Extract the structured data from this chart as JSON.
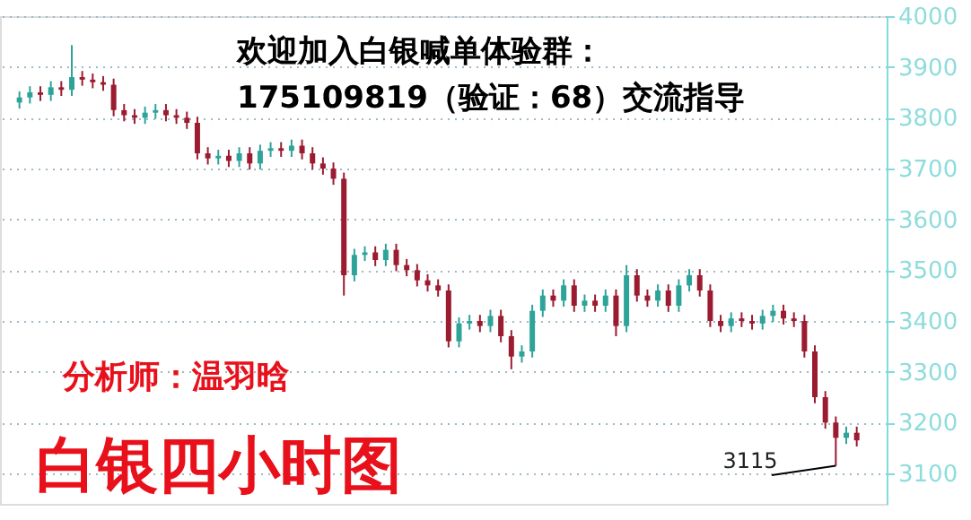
{
  "chart_data": {
    "type": "candlestick",
    "title": "白银四小时图",
    "categories": [
      null,
      null,
      null,
      null,
      null,
      null,
      null,
      null,
      null,
      null,
      null,
      null,
      null,
      null,
      null,
      null,
      null,
      null,
      null,
      null,
      null,
      null,
      null,
      null,
      null,
      null,
      null,
      null,
      null,
      null,
      null,
      null,
      null,
      null,
      null,
      null,
      null,
      null,
      null,
      null,
      null,
      null,
      null,
      null,
      null,
      null,
      null,
      null,
      null,
      null,
      null,
      null,
      null,
      null,
      null,
      null,
      null,
      null,
      null,
      null,
      null,
      null,
      null,
      null,
      null,
      null,
      null,
      null,
      null,
      null,
      null,
      null,
      null,
      null,
      null,
      null,
      null,
      null,
      null,
      null,
      null
    ],
    "ohlc": [
      [
        3830,
        3852,
        3818,
        3840
      ],
      [
        3840,
        3862,
        3828,
        3850
      ],
      [
        3850,
        3862,
        3833,
        3845
      ],
      [
        3845,
        3872,
        3833,
        3860
      ],
      [
        3860,
        3872,
        3843,
        3855
      ],
      [
        3855,
        3943,
        3843,
        3880
      ],
      [
        3880,
        3892,
        3863,
        3875
      ],
      [
        3875,
        3887,
        3858,
        3870
      ],
      [
        3870,
        3882,
        3853,
        3865
      ],
      [
        3865,
        3877,
        3803,
        3815
      ],
      [
        3815,
        3827,
        3793,
        3805
      ],
      [
        3805,
        3817,
        3788,
        3800
      ],
      [
        3800,
        3822,
        3788,
        3810
      ],
      [
        3810,
        3827,
        3798,
        3815
      ],
      [
        3815,
        3827,
        3793,
        3805
      ],
      [
        3805,
        3817,
        3788,
        3800
      ],
      [
        3800,
        3812,
        3778,
        3790
      ],
      [
        3790,
        3802,
        3718,
        3730
      ],
      [
        3730,
        3742,
        3708,
        3720
      ],
      [
        3720,
        3737,
        3708,
        3725
      ],
      [
        3725,
        3737,
        3703,
        3715
      ],
      [
        3715,
        3742,
        3703,
        3730
      ],
      [
        3730,
        3742,
        3698,
        3710
      ],
      [
        3710,
        3747,
        3698,
        3735
      ],
      [
        3735,
        3752,
        3723,
        3740
      ],
      [
        3740,
        3752,
        3723,
        3735
      ],
      [
        3735,
        3757,
        3723,
        3745
      ],
      [
        3745,
        3757,
        3718,
        3730
      ],
      [
        3730,
        3742,
        3698,
        3710
      ],
      [
        3710,
        3722,
        3688,
        3700
      ],
      [
        3700,
        3712,
        3668,
        3680
      ],
      [
        3680,
        3692,
        3450,
        3490
      ],
      [
        3490,
        3542,
        3478,
        3530
      ],
      [
        3530,
        3547,
        3518,
        3535
      ],
      [
        3535,
        3547,
        3508,
        3520
      ],
      [
        3520,
        3552,
        3508,
        3540
      ],
      [
        3540,
        3552,
        3498,
        3510
      ],
      [
        3510,
        3522,
        3488,
        3500
      ],
      [
        3500,
        3512,
        3468,
        3480
      ],
      [
        3480,
        3492,
        3458,
        3470
      ],
      [
        3470,
        3482,
        3448,
        3460
      ],
      [
        3460,
        3472,
        3348,
        3360
      ],
      [
        3360,
        3407,
        3348,
        3395
      ],
      [
        3395,
        3412,
        3383,
        3400
      ],
      [
        3400,
        3412,
        3378,
        3390
      ],
      [
        3390,
        3422,
        3378,
        3410
      ],
      [
        3410,
        3422,
        3358,
        3370
      ],
      [
        3370,
        3382,
        3305,
        3330
      ],
      [
        3330,
        3352,
        3318,
        3340
      ],
      [
        3340,
        3432,
        3328,
        3420
      ],
      [
        3420,
        3462,
        3408,
        3450
      ],
      [
        3450,
        3462,
        3428,
        3440
      ],
      [
        3440,
        3482,
        3428,
        3470
      ],
      [
        3470,
        3482,
        3418,
        3430
      ],
      [
        3430,
        3452,
        3418,
        3440
      ],
      [
        3440,
        3452,
        3418,
        3430
      ],
      [
        3430,
        3462,
        3418,
        3450
      ],
      [
        3450,
        3462,
        3370,
        3390
      ],
      [
        3390,
        3510,
        3378,
        3490
      ],
      [
        3490,
        3502,
        3438,
        3450
      ],
      [
        3450,
        3462,
        3428,
        3440
      ],
      [
        3440,
        3472,
        3428,
        3460
      ],
      [
        3460,
        3472,
        3418,
        3430
      ],
      [
        3430,
        3482,
        3418,
        3470
      ],
      [
        3470,
        3502,
        3458,
        3490
      ],
      [
        3490,
        3502,
        3448,
        3460
      ],
      [
        3460,
        3472,
        3388,
        3400
      ],
      [
        3400,
        3412,
        3378,
        3390
      ],
      [
        3390,
        3417,
        3378,
        3405
      ],
      [
        3405,
        3417,
        3388,
        3400
      ],
      [
        3400,
        3412,
        3383,
        3395
      ],
      [
        3395,
        3422,
        3383,
        3410
      ],
      [
        3410,
        3432,
        3398,
        3420
      ],
      [
        3420,
        3432,
        3393,
        3405
      ],
      [
        3405,
        3417,
        3388,
        3400
      ],
      [
        3400,
        3412,
        3328,
        3340
      ],
      [
        3340,
        3352,
        3238,
        3250
      ],
      [
        3250,
        3262,
        3188,
        3200
      ],
      [
        3200,
        3212,
        3115,
        3170
      ],
      [
        3170,
        3192,
        3158,
        3180
      ],
      [
        3180,
        3192,
        3153,
        3165
      ]
    ],
    "colors": [
      "#2ea39a",
      "#2ea39a",
      "#9b1b30",
      "#2ea39a",
      "#9b1b30",
      "#2ea39a",
      "#9b1b30",
      "#9b1b30",
      "#9b1b30",
      "#9b1b30",
      "#9b1b30",
      "#9b1b30",
      "#2ea39a",
      "#2ea39a",
      "#9b1b30",
      "#9b1b30",
      "#9b1b30",
      "#9b1b30",
      "#9b1b30",
      "#2ea39a",
      "#9b1b30",
      "#2ea39a",
      "#9b1b30",
      "#2ea39a",
      "#2ea39a",
      "#9b1b30",
      "#2ea39a",
      "#9b1b30",
      "#9b1b30",
      "#9b1b30",
      "#9b1b30",
      "#9b1b30",
      "#2ea39a",
      "#2ea39a",
      "#9b1b30",
      "#2ea39a",
      "#9b1b30",
      "#9b1b30",
      "#9b1b30",
      "#9b1b30",
      "#9b1b30",
      "#9b1b30",
      "#2ea39a",
      "#2ea39a",
      "#9b1b30",
      "#2ea39a",
      "#9b1b30",
      "#9b1b30",
      "#2ea39a",
      "#2ea39a",
      "#2ea39a",
      "#9b1b30",
      "#2ea39a",
      "#9b1b30",
      "#2ea39a",
      "#9b1b30",
      "#2ea39a",
      "#9b1b30",
      "#2ea39a",
      "#9b1b30",
      "#9b1b30",
      "#2ea39a",
      "#9b1b30",
      "#2ea39a",
      "#2ea39a",
      "#9b1b30",
      "#9b1b30",
      "#9b1b30",
      "#2ea39a",
      "#9b1b30",
      "#9b1b30",
      "#2ea39a",
      "#2ea39a",
      "#9b1b30",
      "#9b1b30",
      "#9b1b30",
      "#9b1b30",
      "#9b1b30",
      "#9b1b30",
      "#2ea39a",
      "#9b1b30"
    ],
    "ylim": [
      3040,
      4000
    ],
    "yticks": [
      3100,
      3200,
      3300,
      3400,
      3500,
      3600,
      3700,
      3800,
      3900,
      4000
    ],
    "grid": "y",
    "tick_labels": "y",
    "annotations": [
      "欢迎加入白银喊单体验群：",
      "175109819（验证：68）交流指导",
      "分析师：温羽晗",
      "3115"
    ]
  }
}
